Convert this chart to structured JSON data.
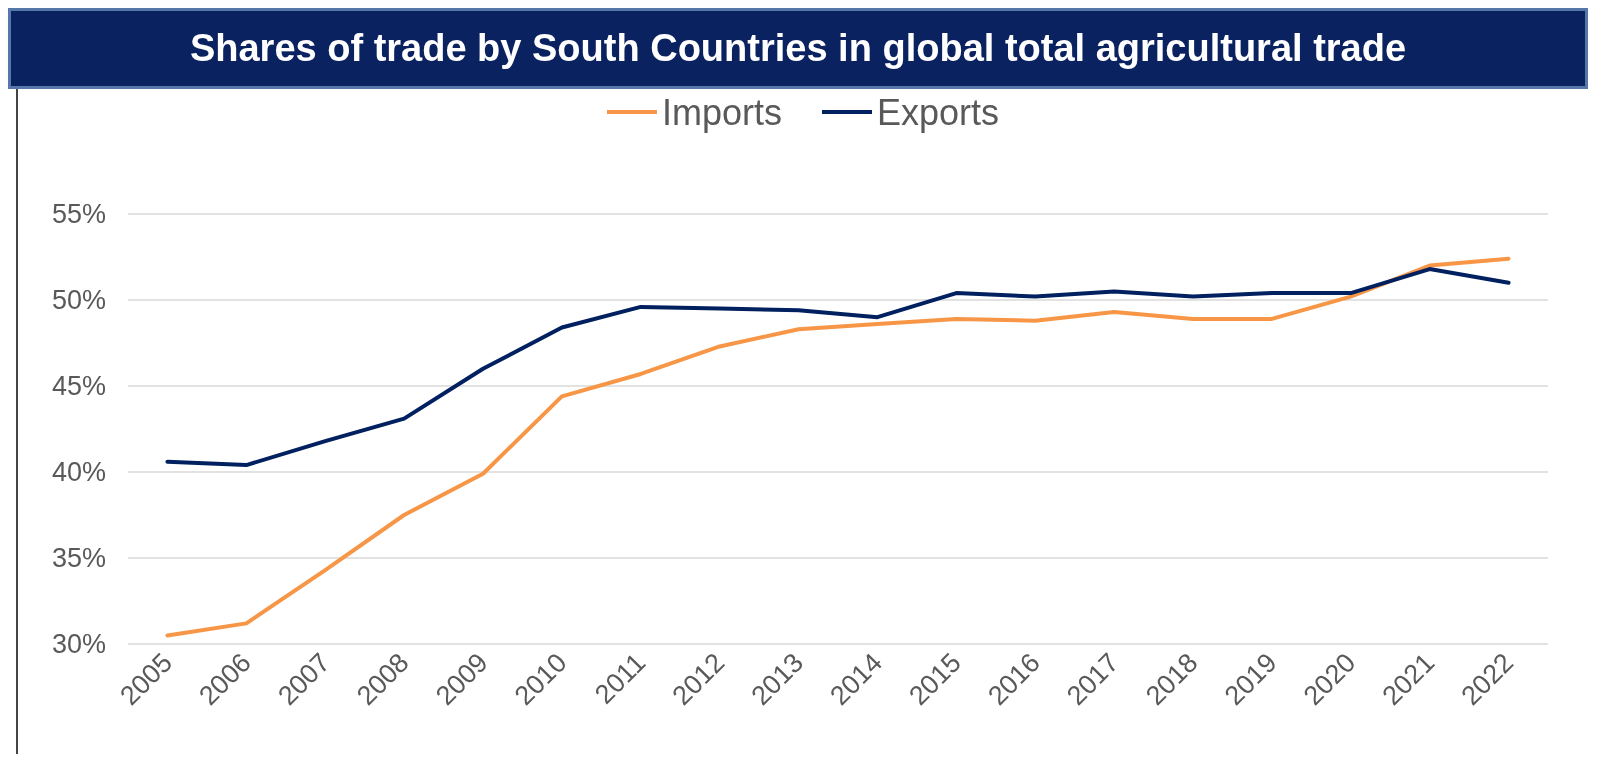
{
  "chart_data": {
    "type": "line",
    "title": "Shares of trade by South Countries in global total  agricultural trade",
    "categories": [
      "2005",
      "2006",
      "2007",
      "2008",
      "2009",
      "2010",
      "2011",
      "2012",
      "2013",
      "2014",
      "2015",
      "2016",
      "2017",
      "2018",
      "2019",
      "2020",
      "2021",
      "2022"
    ],
    "series": [
      {
        "name": "Imports",
        "color": "#f79646",
        "values": [
          30.5,
          31.2,
          34.3,
          37.5,
          39.9,
          44.4,
          45.7,
          47.3,
          48.3,
          48.6,
          48.9,
          48.8,
          49.3,
          48.9,
          48.9,
          50.2,
          52.0,
          52.4
        ]
      },
      {
        "name": "Exports",
        "color": "#002060",
        "values": [
          40.6,
          40.4,
          41.8,
          43.1,
          46.0,
          48.4,
          49.6,
          49.5,
          49.4,
          49.0,
          50.4,
          50.2,
          50.5,
          50.2,
          50.4,
          50.4,
          51.8,
          51.0
        ]
      }
    ],
    "ylim": [
      30,
      55
    ],
    "yticks": [
      {
        "value": 30,
        "label": "30%"
      },
      {
        "value": 35,
        "label": "35%"
      },
      {
        "value": 40,
        "label": "40%"
      },
      {
        "value": 45,
        "label": "45%"
      },
      {
        "value": 50,
        "label": "50%"
      },
      {
        "value": 55,
        "label": "55%"
      }
    ],
    "grid": "y",
    "legend": "top",
    "marker": "none",
    "line_style": "solid"
  }
}
